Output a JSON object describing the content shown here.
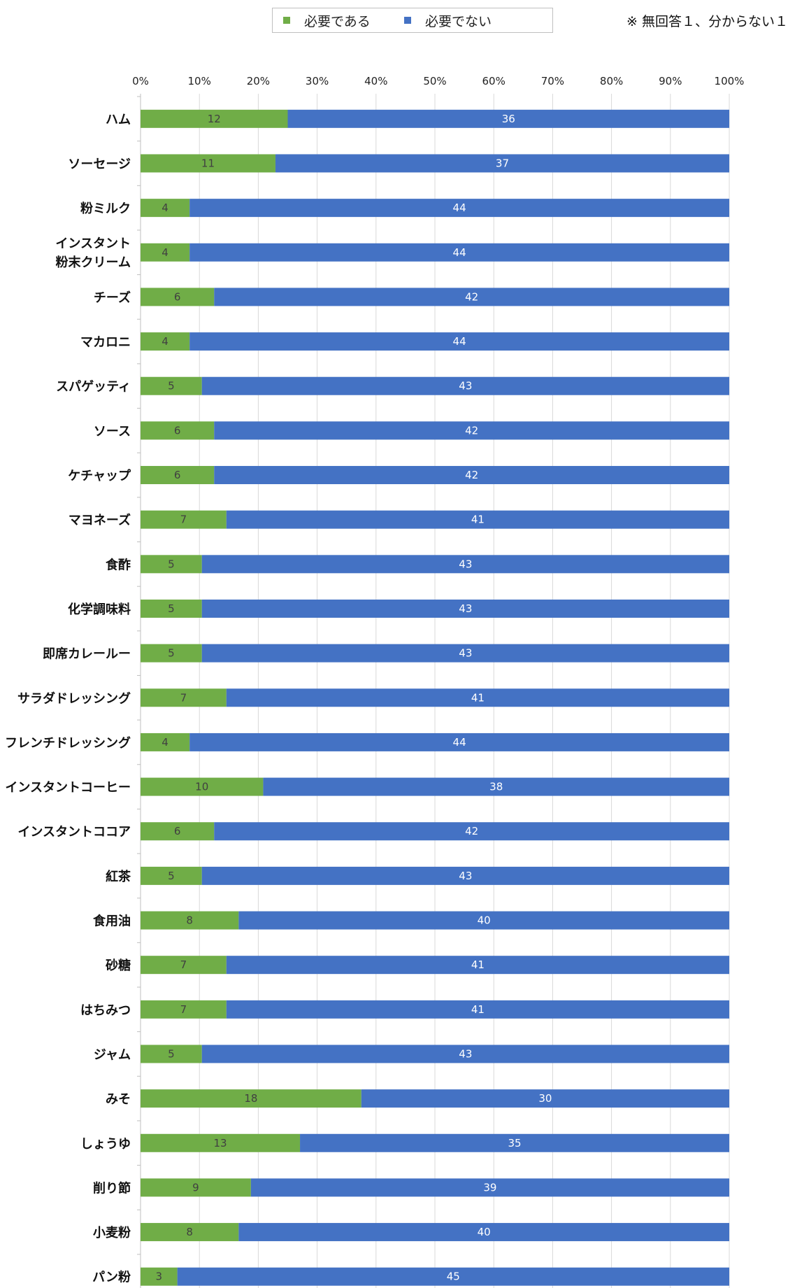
{
  "note": "※ 無回答１、分からない１",
  "colors": {
    "needed": "#70ad47",
    "not_needed": "#4472c4",
    "grid": "#d9d9d9"
  },
  "chart_data": {
    "type": "bar",
    "orientation": "horizontal",
    "stacked": "percent",
    "xlim": [
      0,
      100
    ],
    "x_ticks": [
      "0%",
      "10%",
      "20%",
      "30%",
      "40%",
      "50%",
      "60%",
      "70%",
      "80%",
      "90%",
      "100%"
    ],
    "grid": true,
    "legend_position": "top",
    "categories": [
      "ハム",
      "ソーセージ",
      "粉ミルク",
      "インスタント\n粉末クリーム",
      "チーズ",
      "マカロニ",
      "スパゲッティ",
      "ソース",
      "ケチャップ",
      "マヨネーズ",
      "食酢",
      "化学調味料",
      "即席カレールー",
      "サラダドレッシング",
      "フレンチドレッシング",
      "インスタントコーヒー",
      "インスタントココア",
      "紅茶",
      "食用油",
      "砂糖",
      "はちみつ",
      "ジャム",
      "みそ",
      "しょうゆ",
      "削り節",
      "小麦粉",
      "パン粉"
    ],
    "series": [
      {
        "name": "必要である",
        "color": "#70ad47",
        "values": [
          12,
          11,
          4,
          4,
          6,
          4,
          5,
          6,
          6,
          7,
          5,
          5,
          5,
          7,
          4,
          10,
          6,
          5,
          8,
          7,
          7,
          5,
          18,
          13,
          9,
          8,
          3
        ]
      },
      {
        "name": "必要でない",
        "color": "#4472c4",
        "values": [
          36,
          37,
          44,
          44,
          42,
          44,
          43,
          42,
          42,
          41,
          43,
          43,
          43,
          41,
          44,
          38,
          42,
          43,
          40,
          41,
          41,
          43,
          30,
          35,
          39,
          40,
          45
        ]
      }
    ]
  }
}
